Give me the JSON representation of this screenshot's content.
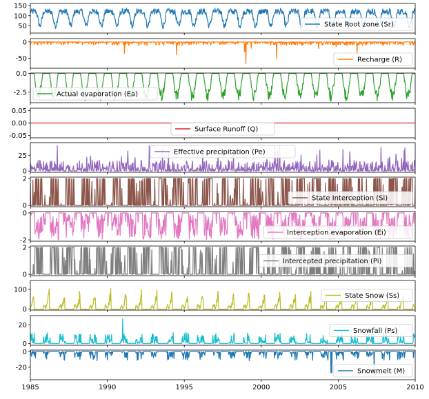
{
  "chart_data": {
    "type": "line",
    "x_range": [
      1985,
      2010
    ],
    "x_ticks": [
      1985,
      1990,
      1995,
      2000,
      2005,
      2010
    ],
    "x_tick_labels": [
      "1985",
      "1990",
      "1995",
      "2000",
      "2005",
      "2010"
    ],
    "grid": false,
    "panels": [
      {
        "name": "State Root zone (Sr)",
        "color": "#1f77b4",
        "legend_loc": "lower-right",
        "ylim": [
          15,
          160
        ],
        "ticks": [
          50,
          100,
          150
        ],
        "tick_labels": [
          "50",
          "100",
          "150"
        ],
        "kind": "root"
      },
      {
        "name": "Recharge (R)",
        "color": "#ff7f0e",
        "legend_loc": "lower-right",
        "ylim": [
          -80,
          10
        ],
        "ticks": [
          -50,
          0
        ],
        "tick_labels": [
          "-50",
          "0"
        ],
        "kind": "recharge"
      },
      {
        "name": "Actual evaporation (Ea)",
        "color": "#2ca02c",
        "legend_loc": "lower-left",
        "ylim": [
          -3.9,
          0.05
        ],
        "ticks": [
          -2.5,
          0.0
        ],
        "tick_labels": [
          "-2.5",
          "0.0"
        ],
        "kind": "evap"
      },
      {
        "name": "Surface Runoff (Q)",
        "color": "#d62728",
        "legend_loc": "lower-center",
        "ylim": [
          -0.06,
          0.06
        ],
        "ticks": [
          -0.05,
          0.0,
          0.05
        ],
        "tick_labels": [
          "-0.05",
          "0.00",
          "0.05"
        ],
        "kind": "zero"
      },
      {
        "name": "Effective precipitation (Pe)",
        "color": "#9467bd",
        "legend_loc": "upper-center",
        "ylim": [
          -2,
          45
        ],
        "ticks": [
          0,
          25
        ],
        "tick_labels": [
          "0",
          "25"
        ],
        "kind": "precip"
      },
      {
        "name": "State Interception (Si)",
        "color": "#8c564b",
        "legend_loc": "lower-right",
        "ylim": [
          -0.1,
          2.1
        ],
        "ticks": [
          0,
          2
        ],
        "tick_labels": [
          "0",
          "2"
        ],
        "kind": "interception"
      },
      {
        "name": "Interception evaporation (Ei)",
        "color": "#e377c2",
        "legend_loc": "lower-right",
        "ylim": [
          -2.1,
          0.1
        ],
        "ticks": [
          -2,
          0
        ],
        "tick_labels": [
          "-2",
          "0"
        ],
        "kind": "ievap"
      },
      {
        "name": "Intercepted precipitation (Pi)",
        "color": "#7f7f7f",
        "legend_loc": "center-right",
        "ylim": [
          -0.1,
          2.1
        ],
        "ticks": [
          0,
          2
        ],
        "tick_labels": [
          "0",
          "2"
        ],
        "kind": "interception"
      },
      {
        "name": "State Snow (Ss)",
        "color": "#bcbd22",
        "legend_loc": "center-right",
        "ylim": [
          -5,
          145
        ],
        "ticks": [
          0,
          100
        ],
        "tick_labels": [
          "0",
          "100"
        ],
        "kind": "snow"
      },
      {
        "name": "Snowfall (Ps)",
        "color": "#17becf",
        "legend_loc": "center-right",
        "ylim": [
          -2,
          30
        ],
        "ticks": [
          0,
          20
        ],
        "tick_labels": [
          "0",
          "20"
        ],
        "kind": "snowfall"
      },
      {
        "name": "Snowmelt (M)",
        "color": "#1f77b4",
        "legend_loc": "lower-right",
        "ylim": [
          -36,
          2
        ],
        "ticks": [
          -20,
          0
        ],
        "tick_labels": [
          "-20",
          "0"
        ],
        "kind": "snowmelt"
      }
    ]
  }
}
